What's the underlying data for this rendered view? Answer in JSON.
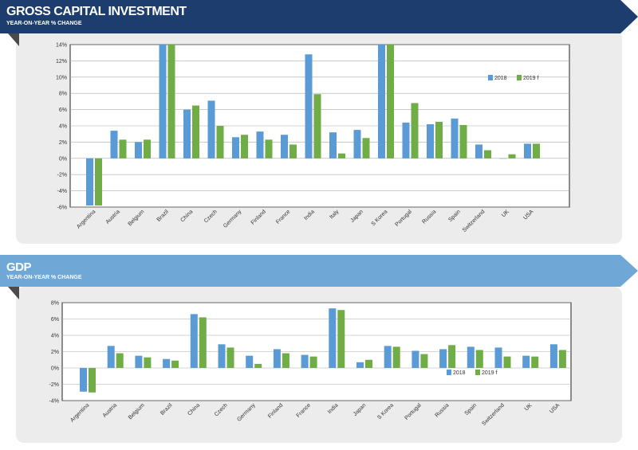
{
  "colors": {
    "series_2018": "#5b9bd5",
    "series_2019": "#70ad47",
    "banner_dark": "#1c3d6e",
    "banner_light": "#6fa7d6"
  },
  "chart_data": [
    {
      "type": "bar",
      "title": "GROSS CAPITAL INVESTMENT",
      "subtitle": "YEAR-ON-YEAR % CHANGE",
      "categories": [
        "Argentina",
        "Austria",
        "Belgium",
        "Brazil",
        "China",
        "Czech",
        "Germany",
        "Finland",
        "France",
        "India",
        "Italy",
        "Japan",
        "S Korea",
        "Portugal",
        "Russia",
        "Spain",
        "Switzerland",
        "UK",
        "USA"
      ],
      "series": [
        {
          "name": "2018",
          "values": [
            -5.8,
            3.4,
            2.0,
            14,
            6.0,
            7.1,
            2.6,
            3.3,
            2.9,
            12.8,
            3.2,
            3.5,
            14,
            4.4,
            4.2,
            4.9,
            1.7,
            0.0,
            1.8
          ]
        },
        {
          "name": "2019 f",
          "values": [
            -5.8,
            2.3,
            2.3,
            14,
            6.5,
            4.0,
            2.9,
            2.3,
            1.7,
            7.9,
            0.6,
            2.5,
            14,
            6.8,
            4.5,
            4.1,
            1.0,
            0.5,
            1.8
          ]
        }
      ],
      "yticks": [
        "14%",
        "12%",
        "10%",
        "8%",
        "6%",
        "4%",
        "2%",
        "0%",
        "-2%",
        "-4%",
        "-6%"
      ],
      "ylim": [
        -6,
        14
      ],
      "legend": "top-right",
      "xlabel": "",
      "ylabel": ""
    },
    {
      "type": "bar",
      "title": "GDP",
      "subtitle": "YEAR-ON-YEAR % CHANGE",
      "categories": [
        "Argentina",
        "Austria",
        "Belgium",
        "Brazil",
        "China",
        "Czech",
        "Germany",
        "Finland",
        "France",
        "India",
        "Japan",
        "S Korea",
        "Portugal",
        "Russia",
        "Spain",
        "Switzerland",
        "UK",
        "USA"
      ],
      "series": [
        {
          "name": "2018",
          "values": [
            -2.9,
            2.7,
            1.5,
            1.1,
            6.6,
            2.9,
            1.5,
            2.3,
            1.6,
            7.3,
            0.7,
            2.7,
            2.1,
            2.3,
            2.6,
            2.5,
            1.5,
            2.9
          ]
        },
        {
          "name": "2019 f",
          "values": [
            -3.0,
            1.8,
            1.3,
            0.9,
            6.2,
            2.5,
            0.5,
            1.8,
            1.4,
            7.1,
            1.0,
            2.6,
            1.7,
            2.8,
            2.2,
            1.4,
            1.4,
            2.2
          ]
        }
      ],
      "yticks": [
        "8%",
        "6%",
        "4%",
        "2%",
        "0%",
        "-2%",
        "-4%"
      ],
      "ylim": [
        -4,
        8
      ],
      "legend": "bottom-right",
      "xlabel": "",
      "ylabel": ""
    }
  ]
}
